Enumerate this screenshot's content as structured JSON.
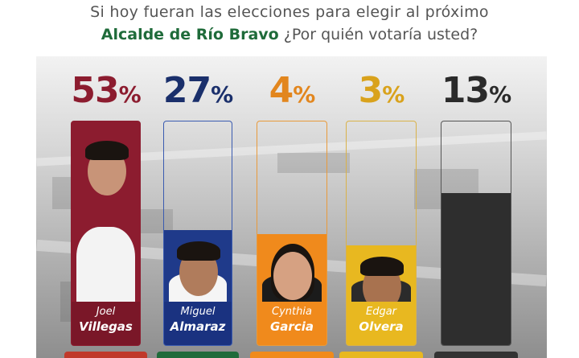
{
  "header": {
    "line1": "Si hoy fueran las elecciones para elegir al próximo",
    "line2_highlight": "Alcalde de Río Bravo",
    "line2_rest": " ¿Por quién votaría usted?"
  },
  "chart_data": {
    "type": "bar",
    "title": "Si hoy fueran las elecciones para elegir al próximo Alcalde de Río Bravo ¿Por quién votaría usted?",
    "ylim": [
      0,
      100
    ],
    "legend": "none",
    "grid": false,
    "categories": [
      "Joel Villegas",
      "Miguel Almaraz",
      "Cynthia Garcia",
      "Edgar Olvera",
      ""
    ],
    "values": [
      53,
      27,
      4,
      3,
      13
    ],
    "bars": [
      {
        "first": "Joel",
        "last": "Villegas",
        "value": 53,
        "label": "53",
        "color": "#8c1c2f",
        "border": "#8c1c2f",
        "fill": "#8c1c2f",
        "bg": "#8c1c2f"
      },
      {
        "first": "Miguel",
        "last": "Almaraz",
        "value": 27,
        "label": "27",
        "color": "#1a2f6b",
        "border": "#3a5bb0",
        "fill": "#1f3a8a",
        "bg": "rgba(255,255,255,0.0)"
      },
      {
        "first": "Cynthia",
        "last": "Garcia",
        "value": 4,
        "label": "4",
        "color": "#e2861e",
        "border": "#e89a3c",
        "fill": "#f08a1c",
        "bg": "rgba(255,255,255,0.0)"
      },
      {
        "first": "Edgar",
        "last": "Olvera",
        "value": 3,
        "label": "3",
        "color": "#d9a21c",
        "border": "#d9b24a",
        "fill": "#e8b820",
        "bg": "rgba(255,255,255,0.0)"
      },
      {
        "first": "",
        "last": "",
        "value": 13,
        "label": "13",
        "color": "#2a2a2a",
        "border": "#555555",
        "fill": "#2e2e2e",
        "bg": "rgba(255,255,255,0.0)"
      }
    ],
    "percent_symbol": "%"
  }
}
